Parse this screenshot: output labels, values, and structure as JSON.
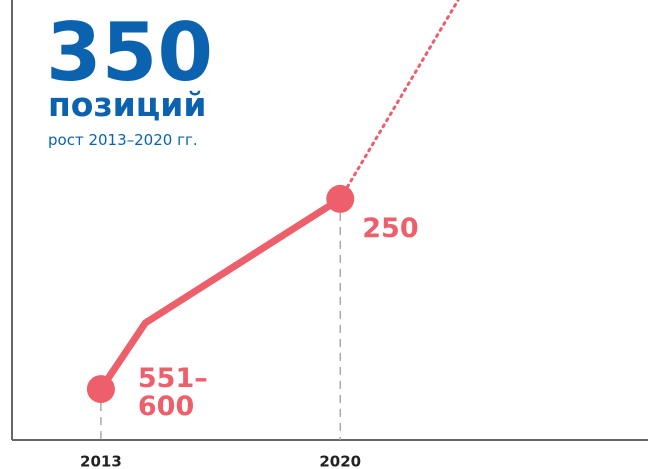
{
  "chart_data": {
    "type": "line",
    "title": "350",
    "subtitle": "позиций",
    "note": "рост 2013–2020 гг.",
    "x": [
      2013,
      2014.3,
      2020
    ],
    "series": [
      {
        "color": "#ec5f6b",
        "values": [
          575,
          462,
          250
        ],
        "value_labels": [
          "551–600",
          null,
          "250"
        ]
      }
    ],
    "xlim": [
      2010.4,
      2029
    ],
    "xticks": [
      2013,
      2020
    ],
    "ylim": [
      662,
      -90
    ]
  }
}
